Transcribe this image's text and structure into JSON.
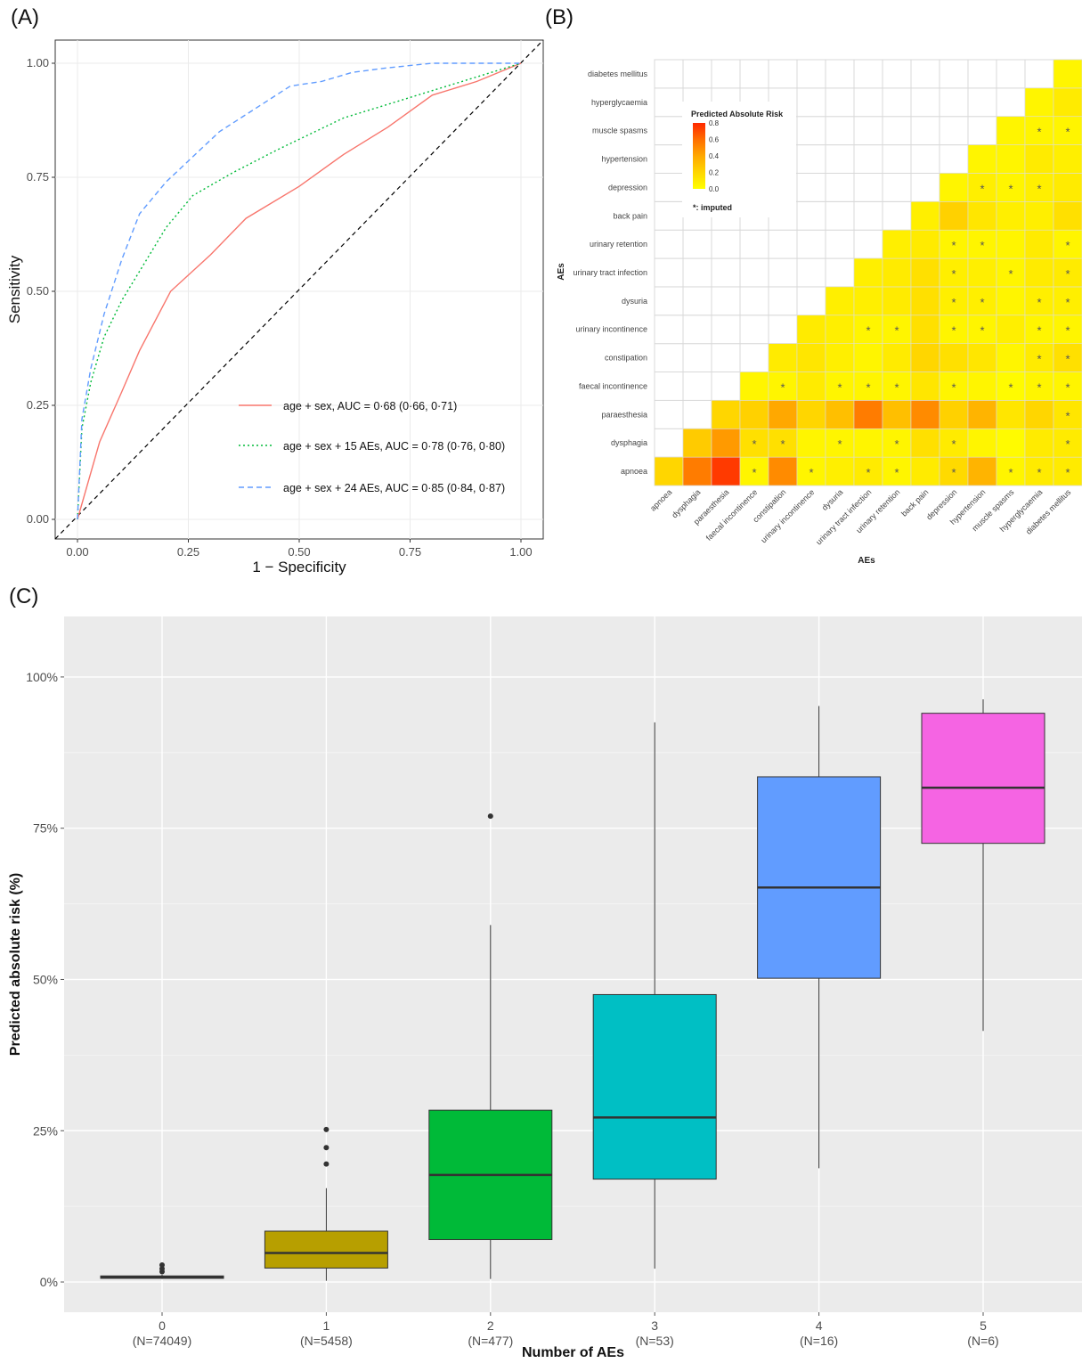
{
  "panels": {
    "a": "(A)",
    "b": "(B)",
    "c": "(C)"
  },
  "chart_data": [
    {
      "type": "line",
      "xlabel": "1 − Specificity",
      "ylabel": "Sensitivity",
      "xlim": [
        0,
        1
      ],
      "ylim": [
        0,
        1
      ],
      "x_ticks": [
        "0.00",
        "0.25",
        "0.50",
        "0.75",
        "1.00"
      ],
      "y_ticks": [
        "0.00",
        "0.25",
        "0.50",
        "0.75",
        "1.00"
      ],
      "grid": true,
      "legend_position": "bottom-right",
      "series": [
        {
          "name": "age + sex, AUC = 0·68 (0·66, 0·71)",
          "color": "#f8766d",
          "line": "solid",
          "points": [
            [
              0,
              0
            ],
            [
              0.05,
              0.17
            ],
            [
              0.1,
              0.28
            ],
            [
              0.14,
              0.37
            ],
            [
              0.21,
              0.5
            ],
            [
              0.3,
              0.58
            ],
            [
              0.38,
              0.66
            ],
            [
              0.5,
              0.73
            ],
            [
              0.6,
              0.8
            ],
            [
              0.7,
              0.86
            ],
            [
              0.8,
              0.93
            ],
            [
              0.9,
              0.96
            ],
            [
              1,
              1
            ]
          ]
        },
        {
          "name": "age + sex + 15 AEs, AUC = 0·78 (0·76, 0·80)",
          "color": "#00ba38",
          "line": "dotted",
          "points": [
            [
              0,
              0
            ],
            [
              0.01,
              0.2
            ],
            [
              0.03,
              0.3
            ],
            [
              0.06,
              0.4
            ],
            [
              0.1,
              0.48
            ],
            [
              0.15,
              0.56
            ],
            [
              0.2,
              0.64
            ],
            [
              0.26,
              0.71
            ],
            [
              0.35,
              0.76
            ],
            [
              0.45,
              0.81
            ],
            [
              0.6,
              0.88
            ],
            [
              0.7,
              0.91
            ],
            [
              0.8,
              0.94
            ],
            [
              0.9,
              0.97
            ],
            [
              1,
              1
            ]
          ]
        },
        {
          "name": "age + sex + 24 AEs, AUC = 0·85 (0·84, 0·87)",
          "color": "#619cff",
          "line": "dashed",
          "points": [
            [
              0,
              0
            ],
            [
              0.01,
              0.22
            ],
            [
              0.03,
              0.33
            ],
            [
              0.06,
              0.45
            ],
            [
              0.1,
              0.57
            ],
            [
              0.14,
              0.67
            ],
            [
              0.2,
              0.74
            ],
            [
              0.32,
              0.85
            ],
            [
              0.4,
              0.9
            ],
            [
              0.48,
              0.95
            ],
            [
              0.55,
              0.96
            ],
            [
              0.62,
              0.98
            ],
            [
              0.7,
              0.99
            ],
            [
              0.8,
              1.0
            ],
            [
              1,
              1
            ]
          ]
        }
      ],
      "reference_line": "diagonal"
    },
    {
      "type": "heatmap",
      "title": "Predicted Absolute Risk",
      "xlabel": "AEs",
      "ylabel": "AEs",
      "legend_ticks": [
        "0.8",
        "0.6",
        "0.4",
        "0.2",
        "0.0"
      ],
      "legend_note": "*: imputed",
      "categories": [
        "apnoea",
        "dysphagia",
        "paraesthesia",
        "faecal incontinence",
        "constipation",
        "urinary incontinence",
        "dysuria",
        "urinary tract infection",
        "urinary retention",
        "back pain",
        "depression",
        "hypertension",
        "muscle spasms",
        "hyperglycaemia",
        "diabetes mellitus"
      ],
      "lower_triangle_values": [
        [
          0.2,
          0.55,
          0.75,
          0.05,
          0.5,
          0.05,
          0.08,
          0.1,
          0.05,
          0.1,
          0.18,
          0.35,
          0.05,
          0.1,
          0.1
        ],
        [
          null,
          0.25,
          0.45,
          0.15,
          0.15,
          0.05,
          0.05,
          0.05,
          0.05,
          0.15,
          0.1,
          0.05,
          0.02,
          0.1,
          0.1
        ],
        [
          null,
          null,
          0.2,
          0.22,
          0.4,
          0.2,
          0.3,
          0.55,
          0.3,
          0.5,
          0.22,
          0.35,
          0.12,
          0.2,
          0.12
        ],
        [
          null,
          null,
          null,
          0.05,
          0.05,
          0.1,
          0.05,
          0.05,
          0.05,
          0.12,
          0.05,
          0.05,
          0.02,
          0.05,
          0.05
        ],
        [
          null,
          null,
          null,
          null,
          0.1,
          0.12,
          0.08,
          0.05,
          0.1,
          0.2,
          0.15,
          0.12,
          0.05,
          0.1,
          0.15
        ],
        [
          null,
          null,
          null,
          null,
          null,
          0.1,
          0.08,
          0.05,
          0.05,
          0.15,
          0.05,
          0.05,
          0.08,
          0.05,
          0.05
        ],
        [
          null,
          null,
          null,
          null,
          null,
          null,
          0.08,
          0.08,
          0.1,
          0.15,
          0.08,
          0.08,
          0.05,
          0.08,
          0.08
        ],
        [
          null,
          null,
          null,
          null,
          null,
          null,
          null,
          0.08,
          0.1,
          0.15,
          0.08,
          0.08,
          0.05,
          0.1,
          0.1
        ],
        [
          null,
          null,
          null,
          null,
          null,
          null,
          null,
          null,
          0.08,
          0.1,
          0.05,
          0.05,
          0.05,
          0.1,
          0.05
        ],
        [
          null,
          null,
          null,
          null,
          null,
          null,
          null,
          null,
          null,
          0.08,
          0.22,
          0.12,
          0.08,
          0.08,
          0.15
        ],
        [
          null,
          null,
          null,
          null,
          null,
          null,
          null,
          null,
          null,
          null,
          0.05,
          0.08,
          0.05,
          0.08,
          0.1
        ],
        [
          null,
          null,
          null,
          null,
          null,
          null,
          null,
          null,
          null,
          null,
          null,
          0.05,
          0.05,
          0.1,
          0.08
        ],
        [
          null,
          null,
          null,
          null,
          null,
          null,
          null,
          null,
          null,
          null,
          null,
          null,
          0.05,
          0.05,
          0.05
        ],
        [
          null,
          null,
          null,
          null,
          null,
          null,
          null,
          null,
          null,
          null,
          null,
          null,
          null,
          0.05,
          0.1
        ],
        [
          null,
          null,
          null,
          null,
          null,
          null,
          null,
          null,
          null,
          null,
          null,
          null,
          null,
          null,
          0.05
        ]
      ],
      "imputed_cells": [
        [
          0,
          3
        ],
        [
          0,
          5
        ],
        [
          0,
          7
        ],
        [
          0,
          8
        ],
        [
          0,
          10
        ],
        [
          0,
          12
        ],
        [
          0,
          13
        ],
        [
          0,
          14
        ],
        [
          1,
          3
        ],
        [
          1,
          4
        ],
        [
          1,
          6
        ],
        [
          1,
          8
        ],
        [
          1,
          10
        ],
        [
          1,
          14
        ],
        [
          2,
          14
        ],
        [
          3,
          4
        ],
        [
          3,
          6
        ],
        [
          3,
          7
        ],
        [
          3,
          8
        ],
        [
          3,
          10
        ],
        [
          3,
          12
        ],
        [
          3,
          13
        ],
        [
          3,
          14
        ],
        [
          4,
          13
        ],
        [
          4,
          14
        ],
        [
          5,
          7
        ],
        [
          5,
          8
        ],
        [
          5,
          10
        ],
        [
          5,
          11
        ],
        [
          5,
          13
        ],
        [
          5,
          14
        ],
        [
          6,
          10
        ],
        [
          6,
          11
        ],
        [
          6,
          13
        ],
        [
          6,
          14
        ],
        [
          7,
          10
        ],
        [
          7,
          12
        ],
        [
          7,
          14
        ],
        [
          8,
          10
        ],
        [
          8,
          11
        ],
        [
          8,
          14
        ],
        [
          10,
          11
        ],
        [
          10,
          12
        ],
        [
          10,
          13
        ],
        [
          12,
          13
        ],
        [
          12,
          14
        ]
      ]
    },
    {
      "type": "box",
      "xlabel": "Number of AEs",
      "ylabel": "Predicted absolute risk (%)",
      "ylim": [
        -5,
        110
      ],
      "y_ticks": [
        "0%",
        "25%",
        "50%",
        "75%",
        "100%"
      ],
      "categories": [
        "0",
        "1",
        "2",
        "3",
        "4",
        "5"
      ],
      "counts": [
        "(N=74049)",
        "(N=5458)",
        "(N=477)",
        "(N=53)",
        "(N=16)",
        "(N=6)"
      ],
      "boxes": [
        {
          "color": "#f8766d",
          "min": 0.5,
          "q1": 0.6,
          "median": 0.8,
          "q3": 1.0,
          "max": 1.2,
          "outliers": [
            1.7,
            2.2,
            2.8
          ]
        },
        {
          "color": "#b79f00",
          "min": 0.2,
          "q1": 2.3,
          "median": 4.8,
          "q3": 8.4,
          "max": 15.5,
          "outliers": [
            19.5,
            22.2,
            25.2
          ]
        },
        {
          "color": "#00ba38",
          "min": 0.5,
          "q1": 7.0,
          "median": 17.7,
          "q3": 28.4,
          "max": 59.0,
          "outliers": [
            77.0
          ]
        },
        {
          "color": "#00bfc4",
          "min": 2.2,
          "q1": 17.0,
          "median": 27.2,
          "q3": 47.5,
          "max": 92.5,
          "outliers": []
        },
        {
          "color": "#619cff",
          "min": 18.8,
          "q1": 50.2,
          "median": 65.2,
          "q3": 83.5,
          "max": 95.2,
          "outliers": []
        },
        {
          "color": "#f564e3",
          "min": 41.5,
          "q1": 72.5,
          "median": 81.7,
          "q3": 94.0,
          "max": 96.3,
          "outliers": []
        }
      ]
    }
  ]
}
